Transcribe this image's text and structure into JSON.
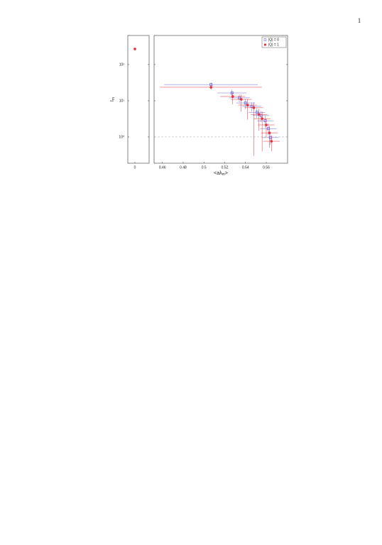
{
  "page_number": "1",
  "chart_data": [
    {
      "type": "scatter",
      "y_label_parts": [
        "I",
        "m"
      ],
      "log_y": true,
      "xlim": [
        -0.01,
        0.02
      ],
      "xticks": [
        0
      ],
      "ylim": [
        0.188,
        635
      ],
      "yticks": [
        {
          "value": 1,
          "label": "10⁰"
        },
        {
          "value": 10,
          "label": "10¹"
        },
        {
          "value": 100,
          "label": "10²"
        }
      ],
      "series": [
        {
          "color": "#e8303a",
          "marker": "circle",
          "x": [
            0
          ],
          "values": [
            270
          ]
        }
      ]
    },
    {
      "type": "scatter",
      "x_label_parts": [
        "<aλ",
        "m",
        ">"
      ],
      "log_y": true,
      "xlim": [
        0.452,
        0.5805
      ],
      "xticks": [
        0.46,
        0.48,
        0.5,
        0.52,
        0.54,
        0.56
      ],
      "ylim": [
        0.188,
        635
      ],
      "yticks": [
        1,
        10,
        100
      ],
      "hline": 1,
      "legend": "top-right",
      "series": [
        {
          "name": "|Q| = 0",
          "color": "#6a6ad8",
          "marker": "open-square",
          "x": [
            0.5068,
            0.527,
            0.534,
            0.54,
            0.546,
            0.551,
            0.555,
            0.559,
            0.562,
            0.564
          ],
          "values": [
            28,
            16.4,
            12,
            8.7,
            7,
            4.8,
            3.9,
            2.8,
            1.7,
            0.96
          ],
          "xerr": [
            0.045,
            0.014,
            0.01,
            0.009,
            0.009,
            0.008,
            0.008,
            0.008,
            0.008,
            0.008
          ],
          "ylow": [
            24,
            12,
            9,
            6,
            5,
            3.3,
            2.6,
            1.8,
            1.1,
            0.6
          ],
          "yhigh": [
            32,
            20,
            15,
            11,
            9,
            6.3,
            5.2,
            3.8,
            2.4,
            1.3
          ]
        },
        {
          "name": "|Q| = 1",
          "color": "#e8303a",
          "marker": "circle",
          "x": [
            0.5068,
            0.5277,
            0.5359,
            0.542,
            0.548,
            0.553,
            0.556,
            0.56,
            0.563,
            0.565
          ],
          "values": [
            23.6,
            13.1,
            10.9,
            7.6,
            6.4,
            4.2,
            3.2,
            2.15,
            1.3,
            0.76
          ],
          "xerr": [
            0.049,
            0.012,
            0.01,
            0.009,
            0.009,
            0.008,
            0.008,
            0.008,
            0.008,
            0.008
          ],
          "ylow": [
            20,
            8,
            5,
            3,
            0.3,
            1.5,
            0.4,
            1,
            0.5,
            0.4
          ],
          "yhigh": [
            27,
            17,
            15,
            11,
            9,
            6,
            5,
            3.2,
            2,
            1.1
          ]
        }
      ]
    }
  ]
}
